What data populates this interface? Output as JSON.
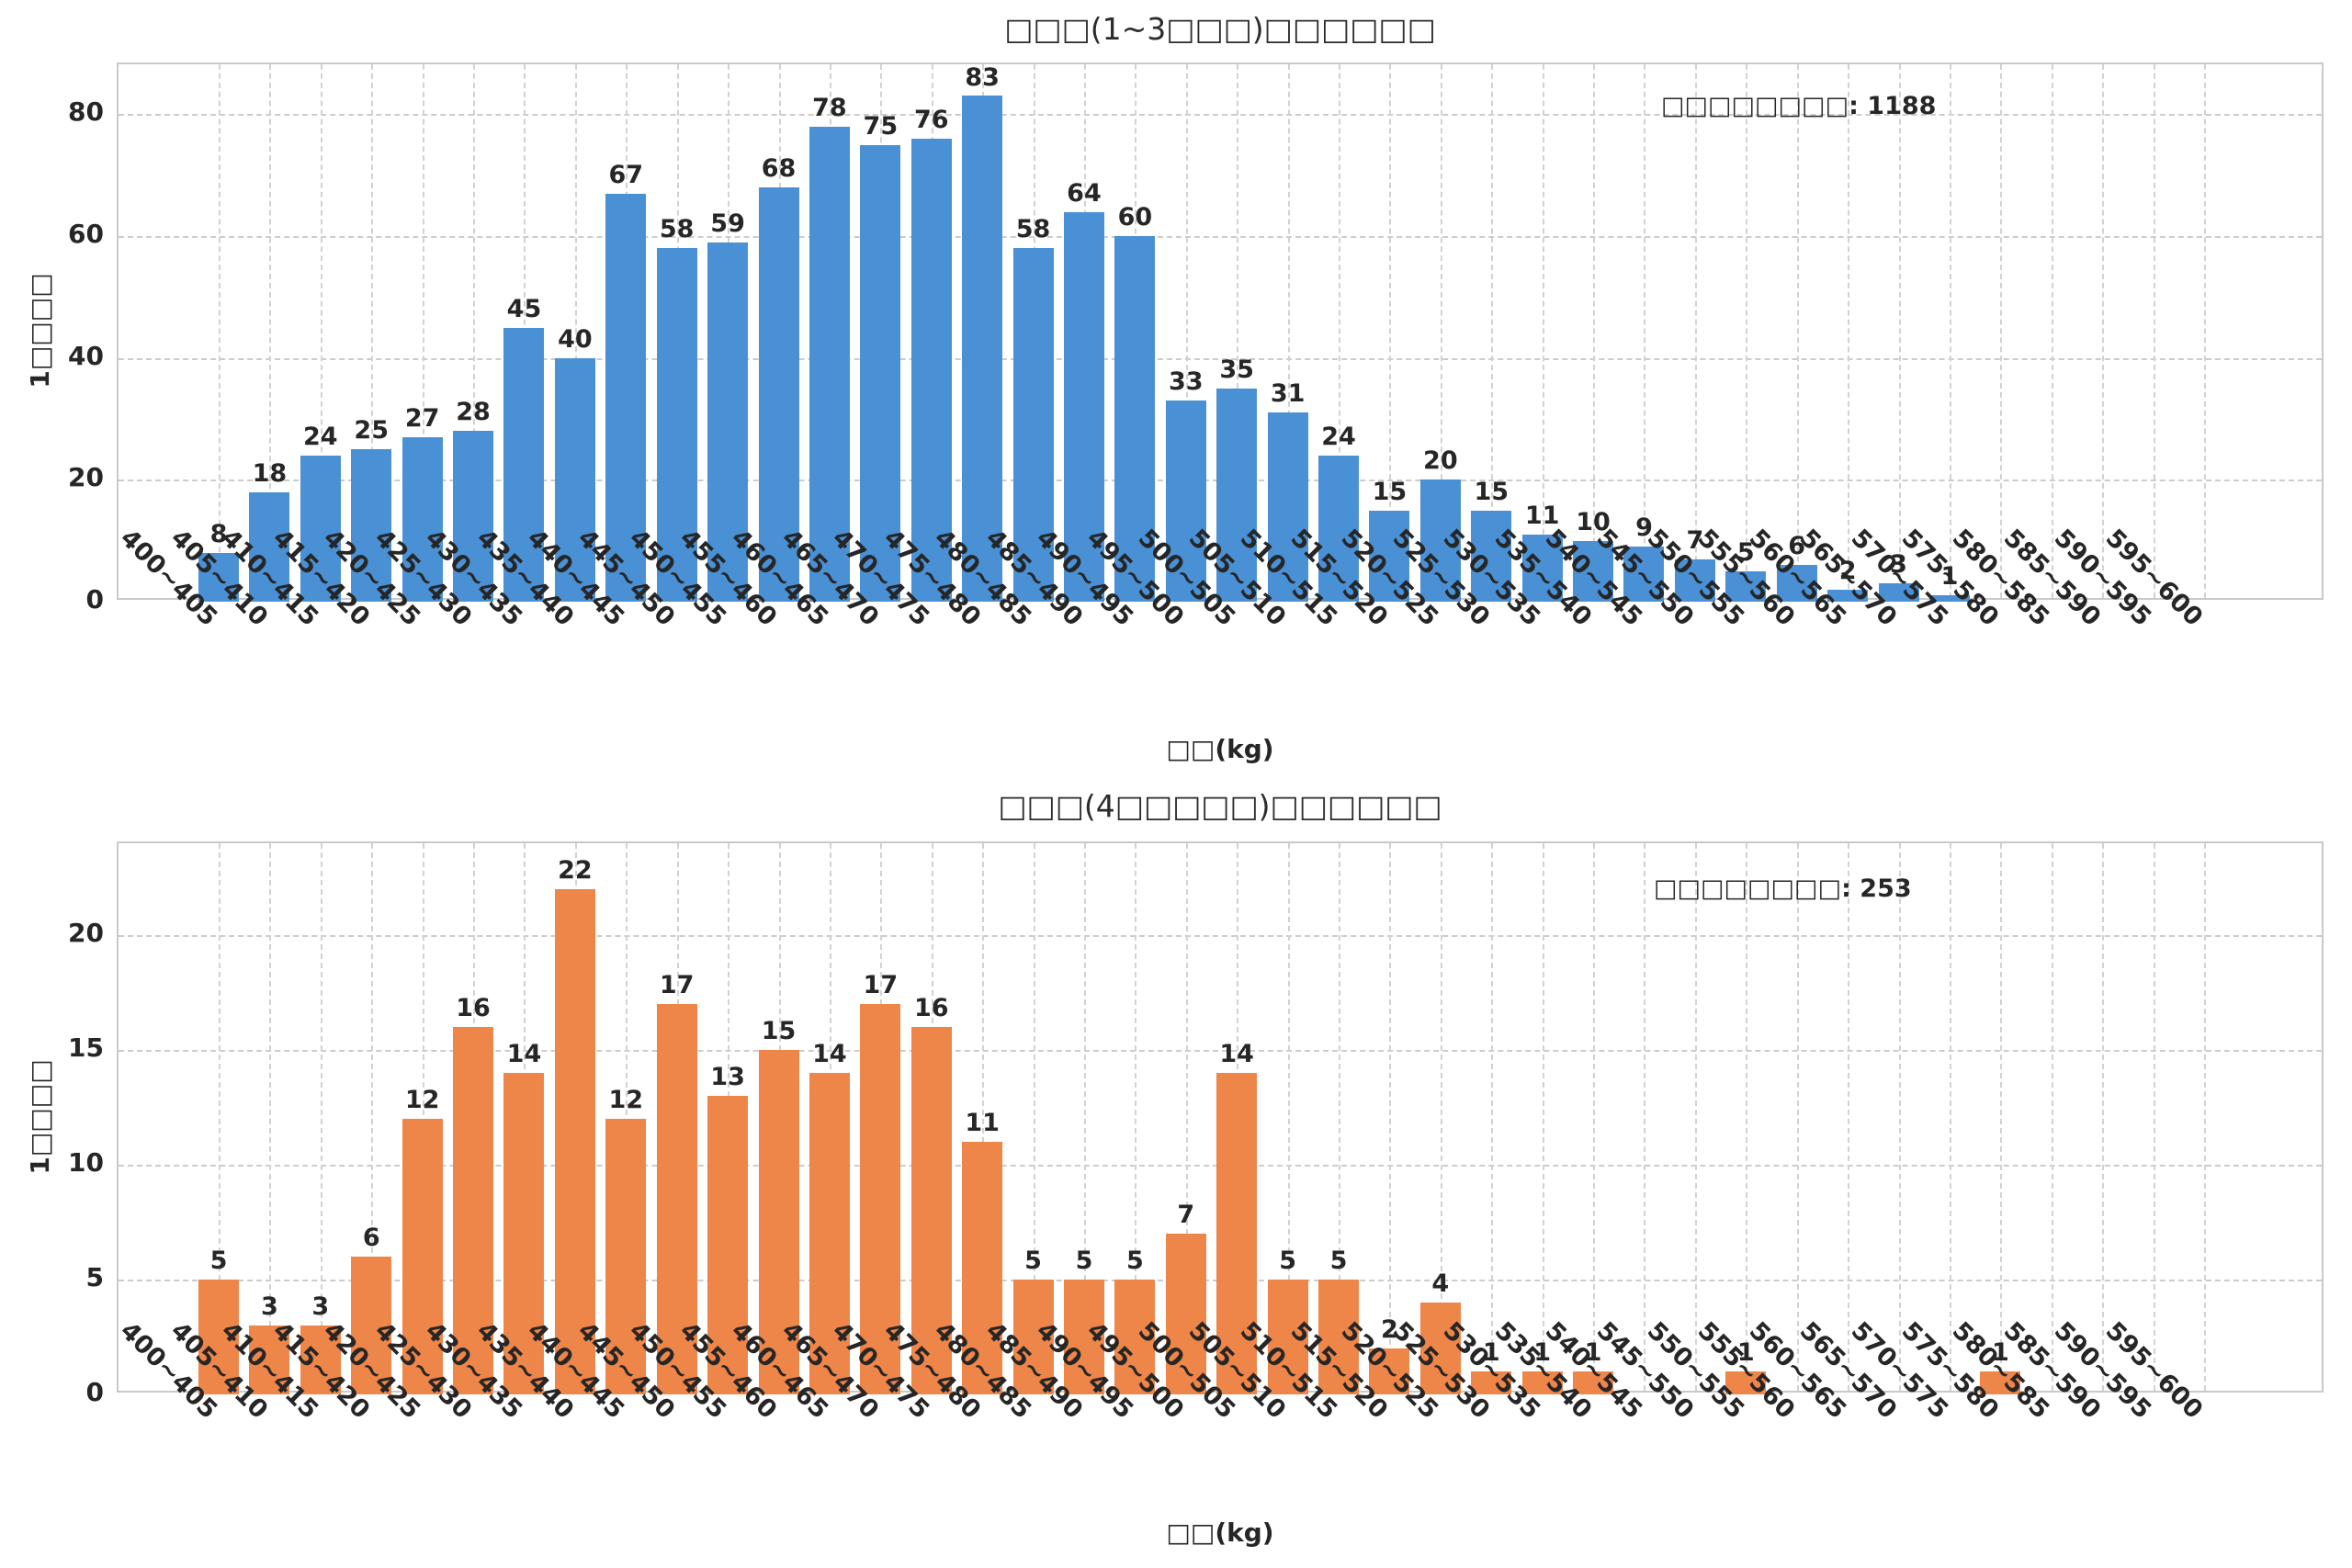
{
  "figure": {
    "background": "#ffffff",
    "grid_color": "#cccccc",
    "text_color": "#262626"
  },
  "chart_data": [
    {
      "type": "bar",
      "title": "□□□(1~3□□□)□□□□□□",
      "ylabel": "1□□□□",
      "xlabel": "□□(kg)",
      "annotation": "□□□□□□□□: 1188",
      "total": 1188,
      "bar_color": "#4a90d5",
      "grid": "dashed",
      "legend": "none",
      "yticks": [
        0,
        20,
        40,
        60,
        80
      ],
      "ylim": [
        0,
        88.2
      ],
      "categories": [
        "400~405",
        "405~410",
        "410~415",
        "415~420",
        "420~425",
        "425~430",
        "430~435",
        "435~440",
        "440~445",
        "445~450",
        "450~455",
        "455~460",
        "460~465",
        "465~470",
        "470~475",
        "475~480",
        "480~485",
        "485~490",
        "490~495",
        "495~500",
        "500~505",
        "505~510",
        "510~515",
        "515~520",
        "520~525",
        "525~530",
        "530~535",
        "535~540",
        "540~545",
        "545~550",
        "550~555",
        "555~560",
        "560~565",
        "565~570",
        "570~575",
        "575~580",
        "580~585",
        "585~590",
        "590~595",
        "595~600"
      ],
      "values": [
        8,
        18,
        24,
        25,
        27,
        28,
        45,
        40,
        67,
        58,
        59,
        68,
        78,
        75,
        76,
        83,
        58,
        64,
        60,
        33,
        35,
        31,
        24,
        15,
        20,
        15,
        11,
        10,
        9,
        7,
        5,
        6,
        2,
        3,
        1,
        0,
        0,
        0,
        0,
        0
      ]
    },
    {
      "type": "bar",
      "title": "□□□(4□□□□□)□□□□□□",
      "ylabel": "1□□□□",
      "xlabel": "□□(kg)",
      "annotation": "□□□□□□□□: 253",
      "total": 253,
      "bar_color": "#ee8549",
      "grid": "dashed",
      "legend": "none",
      "yticks": [
        0,
        5,
        10,
        15,
        20
      ],
      "ylim": [
        0,
        24
      ],
      "categories": [
        "400~405",
        "405~410",
        "410~415",
        "415~420",
        "420~425",
        "425~430",
        "430~435",
        "435~440",
        "440~445",
        "445~450",
        "450~455",
        "455~460",
        "460~465",
        "465~470",
        "470~475",
        "475~480",
        "480~485",
        "485~490",
        "490~495",
        "495~500",
        "500~505",
        "505~510",
        "510~515",
        "515~520",
        "520~525",
        "525~530",
        "530~535",
        "535~540",
        "540~545",
        "545~550",
        "550~555",
        "555~560",
        "560~565",
        "565~570",
        "570~575",
        "575~580",
        "580~585",
        "585~590",
        "590~595",
        "595~600"
      ],
      "values": [
        5,
        3,
        3,
        6,
        12,
        16,
        14,
        22,
        12,
        17,
        13,
        15,
        14,
        17,
        16,
        11,
        5,
        5,
        5,
        7,
        14,
        5,
        5,
        2,
        4,
        1,
        1,
        1,
        0,
        0,
        1,
        0,
        0,
        0,
        0,
        1,
        0,
        0,
        0,
        0
      ]
    }
  ]
}
